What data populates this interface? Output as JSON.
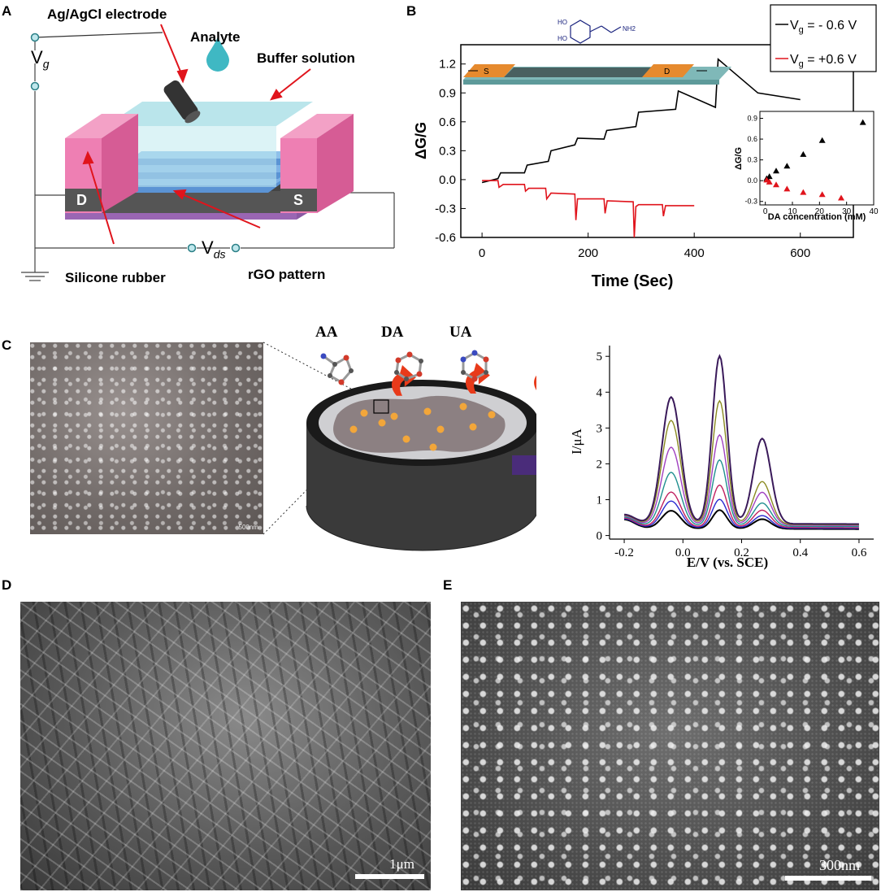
{
  "panels": {
    "a": {
      "letter": "A",
      "labels": {
        "electrode": "Ag/AgCl electrode",
        "analyte": "Analyte",
        "buffer": "Buffer solution",
        "vg_main": "V",
        "vg_sub": "g",
        "drain": "D",
        "source": "S",
        "vds_main": "V",
        "vds_sub": "ds",
        "silicone": "Silicone rubber",
        "rgo": "rGO pattern"
      }
    },
    "b": {
      "letter": "B",
      "device_labels": {
        "source": "S",
        "drain": "D",
        "ho1": "HO",
        "ho2": "HO",
        "nh2": "NH2"
      },
      "legend": [
        {
          "label_main": "V",
          "label_sub": "g",
          "label_rest": " = - 0.6 V",
          "color": "#000000"
        },
        {
          "label_main": "V",
          "label_sub": "g",
          "label_rest": " = +0.6 V",
          "color": "#e0141c"
        }
      ]
    },
    "c": {
      "letter": "C",
      "molecules": [
        "AA",
        "DA",
        "UA"
      ],
      "sem_scale": "500nm"
    },
    "d": {
      "letter": "D",
      "scale": "1μm"
    },
    "e": {
      "letter": "E",
      "scale": "300nm"
    }
  },
  "chart_data": [
    {
      "type": "line",
      "panel": "B",
      "xlabel": "Time (Sec)",
      "ylabel": "ΔG/G",
      "xlim": [
        -40,
        700
      ],
      "ylim": [
        -0.6,
        1.4
      ],
      "xticks": [
        0,
        200,
        400,
        600
      ],
      "yticks": [
        -0.6,
        -0.3,
        0.0,
        0.3,
        0.6,
        0.9,
        1.2
      ],
      "series": [
        {
          "color": "#000000",
          "x": [
            0,
            30,
            35,
            80,
            85,
            125,
            130,
            175,
            180,
            230,
            235,
            290,
            295,
            365,
            370,
            440,
            445,
            520,
            600
          ],
          "y": [
            -0.03,
            0.01,
            0.07,
            0.07,
            0.15,
            0.19,
            0.3,
            0.36,
            0.43,
            0.42,
            0.51,
            0.55,
            0.7,
            0.73,
            0.92,
            0.75,
            1.25,
            0.9,
            0.83
          ]
        },
        {
          "color": "#e0141c",
          "x": [
            0,
            30,
            32,
            40,
            80,
            82,
            88,
            120,
            122,
            130,
            175,
            177,
            180,
            185,
            230,
            232,
            236,
            285,
            287,
            290,
            295,
            340,
            342,
            346,
            400
          ],
          "y": [
            -0.01,
            -0.01,
            -0.08,
            -0.05,
            -0.05,
            -0.12,
            -0.09,
            -0.09,
            -0.2,
            -0.14,
            -0.15,
            -0.42,
            -0.2,
            -0.2,
            -0.2,
            -0.35,
            -0.22,
            -0.23,
            -0.6,
            -0.28,
            -0.26,
            -0.26,
            -0.38,
            -0.27,
            -0.27
          ]
        }
      ]
    },
    {
      "type": "scatter",
      "panel": "B-inset",
      "xlabel": "DA concentration (mM)",
      "ylabel": "ΔG/G",
      "xlim": [
        -2,
        40
      ],
      "ylim": [
        -0.35,
        1.0
      ],
      "xticks": [
        0,
        10,
        20,
        30,
        40
      ],
      "yticks": [
        -0.3,
        0.0,
        0.3,
        0.6,
        0.9
      ],
      "series": [
        {
          "color": "#000000",
          "x": [
            0.5,
            1.5,
            4,
            8,
            14,
            21,
            36
          ],
          "y": [
            0.03,
            0.06,
            0.14,
            0.21,
            0.38,
            0.58,
            0.84
          ]
        },
        {
          "color": "#e0141c",
          "x": [
            0.5,
            1.5,
            4,
            8,
            14,
            21,
            28
          ],
          "y": [
            0.01,
            -0.02,
            -0.06,
            -0.12,
            -0.17,
            -0.2,
            -0.25
          ]
        }
      ]
    },
    {
      "type": "line",
      "panel": "C",
      "xlabel": "E/V (vs. SCE)",
      "ylabel": "I/μA",
      "xlim": [
        -0.25,
        0.65
      ],
      "ylim": [
        -0.1,
        5.3
      ],
      "xticks": [
        -0.2,
        0.0,
        0.2,
        0.4,
        0.6
      ],
      "yticks": [
        0,
        1,
        2,
        3,
        4,
        5
      ],
      "peaks_x": [
        -0.04,
        0.125,
        0.27
      ],
      "series": [
        {
          "color": "#000000",
          "peaks": [
            0.68,
            0.7,
            0.45
          ],
          "base": 0.18
        },
        {
          "color": "#2a2ad0",
          "peaks": [
            0.95,
            1.0,
            0.55
          ],
          "base": 0.2
        },
        {
          "color": "#c02060",
          "peaks": [
            1.2,
            1.4,
            0.7
          ],
          "base": 0.22
        },
        {
          "color": "#1f8f8f",
          "peaks": [
            1.75,
            2.1,
            0.9
          ],
          "base": 0.25
        },
        {
          "color": "#a040c0",
          "peaks": [
            2.45,
            2.8,
            1.2
          ],
          "base": 0.28
        },
        {
          "color": "#8a8a20",
          "peaks": [
            3.2,
            3.75,
            1.5
          ],
          "base": 0.3
        },
        {
          "color": "#3a1a5a",
          "peaks": [
            3.85,
            5.0,
            2.7
          ],
          "base": 0.32
        }
      ]
    }
  ]
}
